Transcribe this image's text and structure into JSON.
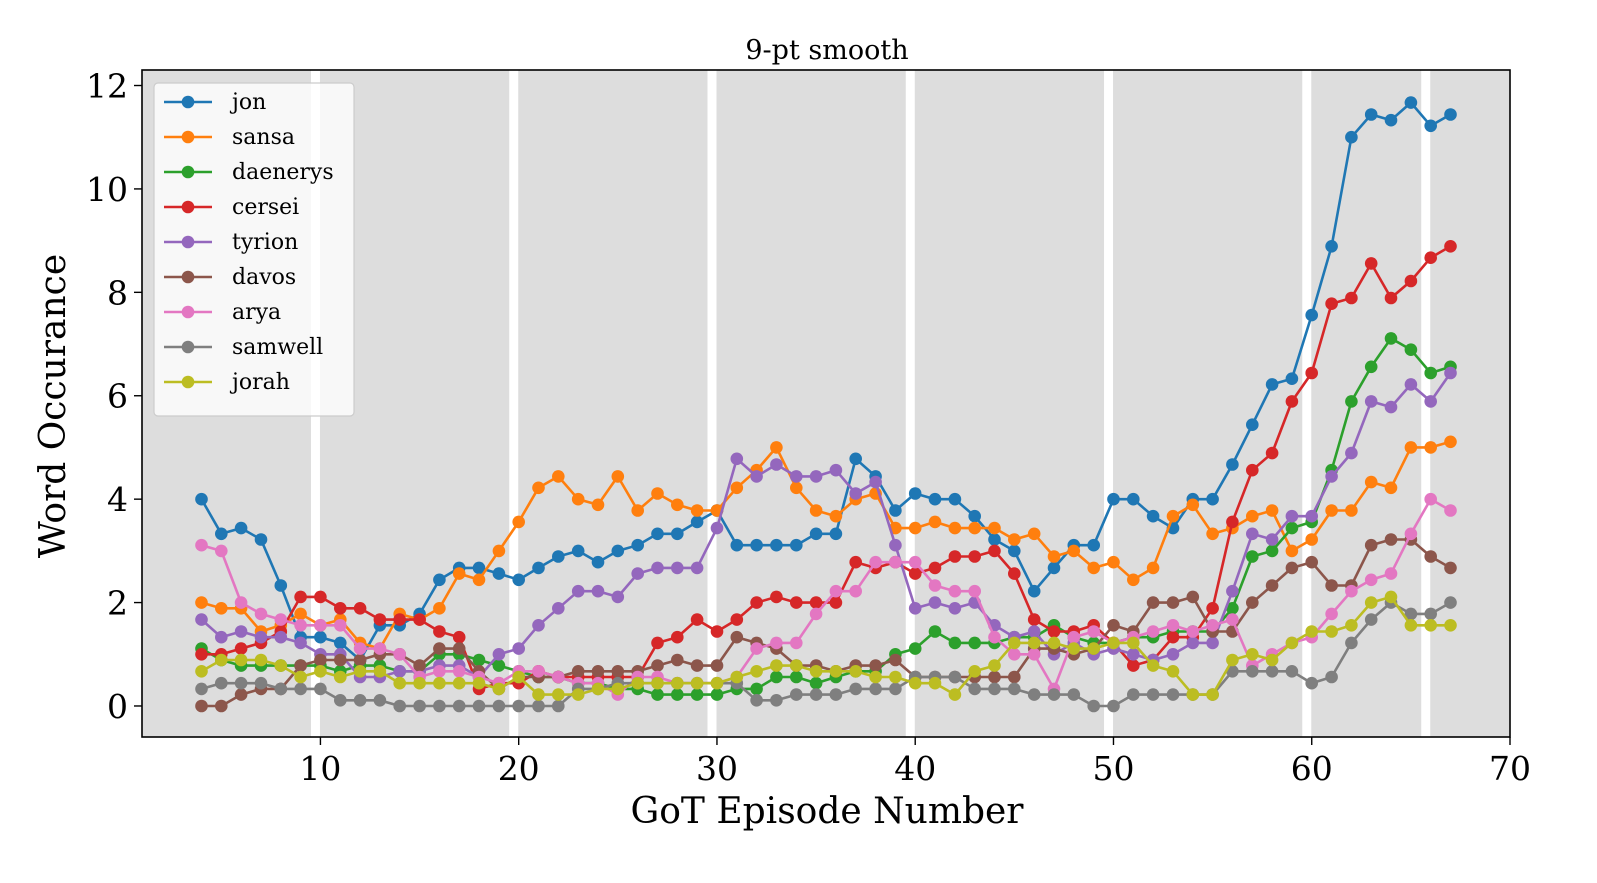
{
  "chart_data": {
    "type": "line",
    "title": "9-pt smooth",
    "xlabel": "GoT Episode Number",
    "ylabel": "Word Occurance",
    "xlim": [
      1,
      70
    ],
    "ylim": [
      -0.6,
      12.3
    ],
    "xticks": [
      10,
      20,
      30,
      40,
      50,
      60,
      70
    ],
    "yticks": [
      0,
      2,
      4,
      6,
      8,
      10,
      12
    ],
    "season_gaps": [
      9.75,
      19.75,
      29.75,
      39.75,
      49.75,
      59.75,
      65.75
    ],
    "legend_position": "top-left",
    "x": [
      4,
      5,
      6,
      7,
      8,
      9,
      10,
      11,
      12,
      13,
      14,
      15,
      16,
      17,
      18,
      19,
      20,
      21,
      22,
      23,
      24,
      25,
      26,
      27,
      28,
      29,
      30,
      31,
      32,
      33,
      34,
      35,
      36,
      37,
      38,
      39,
      40,
      41,
      42,
      43,
      44,
      45,
      46,
      47,
      48,
      49,
      50,
      51,
      52,
      53,
      54,
      55,
      56,
      57,
      58,
      59,
      60,
      61,
      62,
      63,
      64,
      65,
      66,
      67
    ],
    "series": [
      {
        "name": "jon",
        "color": "#1f77b4",
        "values": [
          4.0,
          3.33,
          3.44,
          3.22,
          2.33,
          1.33,
          1.33,
          1.22,
          0.89,
          1.56,
          1.56,
          1.78,
          2.44,
          2.67,
          2.67,
          2.56,
          2.44,
          2.67,
          2.89,
          3.0,
          2.78,
          3.0,
          3.11,
          3.33,
          3.33,
          3.56,
          3.78,
          3.11,
          3.11,
          3.11,
          3.11,
          3.33,
          3.33,
          4.78,
          4.44,
          3.78,
          4.11,
          4.0,
          4.0,
          3.67,
          3.22,
          3.0,
          2.22,
          2.67,
          3.11,
          3.11,
          4.0,
          4.0,
          3.67,
          3.44,
          4.0,
          4.0,
          4.67,
          5.44,
          6.22,
          6.33,
          7.56,
          8.89,
          11.0,
          11.44,
          11.33,
          11.67,
          11.22,
          11.44
        ]
      },
      {
        "name": "sansa",
        "color": "#ff7f0e",
        "values": [
          2.0,
          1.89,
          1.89,
          1.44,
          1.56,
          1.78,
          1.56,
          1.67,
          1.22,
          1.11,
          1.78,
          1.67,
          1.89,
          2.56,
          2.44,
          3.0,
          3.56,
          4.22,
          4.44,
          4.0,
          3.89,
          4.44,
          3.78,
          4.11,
          3.89,
          3.78,
          3.78,
          4.22,
          4.56,
          5.0,
          4.22,
          3.78,
          3.67,
          4.0,
          4.11,
          3.44,
          3.44,
          3.56,
          3.44,
          3.44,
          3.44,
          3.22,
          3.33,
          2.89,
          3.0,
          2.67,
          2.78,
          2.44,
          2.67,
          3.67,
          3.89,
          3.33,
          3.44,
          3.67,
          3.78,
          3.0,
          3.22,
          3.78,
          3.78,
          4.33,
          4.22,
          5.0,
          5.0,
          5.11
        ]
      },
      {
        "name": "daenerys",
        "color": "#2ca02c",
        "values": [
          1.11,
          0.89,
          0.78,
          0.78,
          0.78,
          0.78,
          0.78,
          0.67,
          0.78,
          0.78,
          0.67,
          0.67,
          1.0,
          1.0,
          0.89,
          0.78,
          0.67,
          0.56,
          0.56,
          0.44,
          0.44,
          0.33,
          0.33,
          0.22,
          0.22,
          0.22,
          0.22,
          0.33,
          0.33,
          0.56,
          0.56,
          0.44,
          0.56,
          0.67,
          0.67,
          1.0,
          1.11,
          1.44,
          1.22,
          1.22,
          1.22,
          1.33,
          1.33,
          1.56,
          1.33,
          1.22,
          1.22,
          1.33,
          1.33,
          1.44,
          1.44,
          1.44,
          1.89,
          2.89,
          3.0,
          3.44,
          3.56,
          4.56,
          5.89,
          6.56,
          7.11,
          6.89,
          6.44,
          6.56
        ]
      },
      {
        "name": "cersei",
        "color": "#d62728",
        "values": [
          1.0,
          1.0,
          1.11,
          1.22,
          1.44,
          2.11,
          2.11,
          1.89,
          1.89,
          1.67,
          1.67,
          1.67,
          1.44,
          1.33,
          0.33,
          0.44,
          0.44,
          0.67,
          0.56,
          0.56,
          0.56,
          0.56,
          0.56,
          1.22,
          1.33,
          1.67,
          1.44,
          1.67,
          2.0,
          2.11,
          2.0,
          2.0,
          2.0,
          2.78,
          2.67,
          2.78,
          2.56,
          2.67,
          2.89,
          2.89,
          3.0,
          2.56,
          1.67,
          1.44,
          1.44,
          1.56,
          1.22,
          0.78,
          0.89,
          1.33,
          1.33,
          1.89,
          3.56,
          4.56,
          4.89,
          5.89,
          6.44,
          7.78,
          7.89,
          8.56,
          7.89,
          8.22,
          8.67,
          8.89
        ]
      },
      {
        "name": "tyrion",
        "color": "#9467bd",
        "values": [
          1.67,
          1.33,
          1.44,
          1.33,
          1.33,
          1.22,
          1.0,
          1.0,
          0.56,
          0.56,
          0.67,
          0.67,
          0.78,
          0.78,
          0.56,
          1.0,
          1.11,
          1.56,
          1.89,
          2.22,
          2.22,
          2.11,
          2.56,
          2.67,
          2.67,
          2.67,
          3.44,
          4.78,
          4.44,
          4.67,
          4.44,
          4.44,
          4.56,
          4.11,
          4.33,
          3.11,
          1.89,
          2.0,
          1.89,
          2.0,
          1.56,
          1.33,
          1.44,
          1.0,
          1.22,
          1.0,
          1.11,
          1.0,
          0.89,
          1.0,
          1.22,
          1.22,
          2.22,
          3.33,
          3.22,
          3.67,
          3.67,
          4.44,
          4.89,
          5.89,
          5.78,
          6.22,
          5.89,
          6.44
        ]
      },
      {
        "name": "davos",
        "color": "#8c564b",
        "values": [
          0.0,
          0.0,
          0.22,
          0.33,
          0.33,
          0.78,
          0.89,
          0.89,
          0.89,
          1.0,
          1.0,
          0.78,
          1.11,
          1.11,
          0.67,
          0.33,
          0.56,
          0.56,
          0.56,
          0.67,
          0.67,
          0.67,
          0.67,
          0.78,
          0.89,
          0.78,
          0.78,
          1.33,
          1.22,
          1.11,
          0.78,
          0.78,
          0.67,
          0.78,
          0.78,
          0.89,
          0.56,
          0.56,
          0.56,
          0.56,
          0.56,
          0.56,
          1.11,
          1.11,
          1.0,
          1.11,
          1.56,
          1.44,
          2.0,
          2.0,
          2.11,
          1.44,
          1.44,
          2.0,
          2.33,
          2.67,
          2.78,
          2.33,
          2.33,
          3.11,
          3.22,
          3.22,
          2.89,
          2.67
        ]
      },
      {
        "name": "arya",
        "color": "#e377c2",
        "values": [
          3.11,
          3.0,
          2.0,
          1.78,
          1.67,
          1.56,
          1.56,
          1.56,
          1.11,
          1.11,
          1.0,
          0.56,
          0.67,
          0.67,
          0.56,
          0.44,
          0.67,
          0.67,
          0.56,
          0.44,
          0.44,
          0.22,
          0.56,
          0.56,
          0.44,
          0.44,
          0.44,
          0.56,
          1.11,
          1.22,
          1.22,
          1.78,
          2.22,
          2.22,
          2.78,
          2.78,
          2.78,
          2.33,
          2.22,
          2.22,
          1.33,
          1.0,
          1.0,
          0.33,
          1.33,
          1.44,
          1.22,
          1.33,
          1.44,
          1.56,
          1.44,
          1.56,
          1.67,
          0.78,
          1.0,
          1.22,
          1.33,
          1.78,
          2.22,
          2.44,
          2.56,
          3.33,
          4.0,
          3.78
        ]
      },
      {
        "name": "samwell",
        "color": "#7f7f7f",
        "values": [
          0.33,
          0.44,
          0.44,
          0.44,
          0.33,
          0.33,
          0.33,
          0.11,
          0.11,
          0.11,
          0.0,
          0.0,
          0.0,
          0.0,
          0.0,
          0.0,
          0.0,
          0.0,
          0.0,
          0.33,
          0.33,
          0.44,
          0.44,
          0.44,
          0.44,
          0.44,
          0.44,
          0.44,
          0.11,
          0.11,
          0.22,
          0.22,
          0.22,
          0.33,
          0.33,
          0.33,
          0.56,
          0.56,
          0.56,
          0.33,
          0.33,
          0.33,
          0.22,
          0.22,
          0.22,
          0.0,
          0.0,
          0.22,
          0.22,
          0.22,
          0.22,
          0.22,
          0.67,
          0.67,
          0.67,
          0.67,
          0.44,
          0.56,
          1.22,
          1.67,
          2.0,
          1.78,
          1.78,
          2.0
        ]
      },
      {
        "name": "jorah",
        "color": "#bcbd22",
        "values": [
          0.67,
          0.89,
          0.89,
          0.89,
          0.78,
          0.56,
          0.67,
          0.56,
          0.67,
          0.67,
          0.44,
          0.44,
          0.44,
          0.44,
          0.44,
          0.33,
          0.56,
          0.22,
          0.22,
          0.22,
          0.33,
          0.33,
          0.44,
          0.44,
          0.44,
          0.44,
          0.44,
          0.56,
          0.67,
          0.78,
          0.78,
          0.67,
          0.67,
          0.67,
          0.56,
          0.56,
          0.44,
          0.44,
          0.22,
          0.67,
          0.78,
          1.22,
          1.22,
          1.22,
          1.11,
          1.11,
          1.22,
          1.22,
          0.78,
          0.67,
          0.22,
          0.22,
          0.89,
          1.0,
          0.89,
          1.22,
          1.44,
          1.44,
          1.56,
          2.0,
          2.11,
          1.56,
          1.56,
          1.56
        ]
      }
    ]
  }
}
